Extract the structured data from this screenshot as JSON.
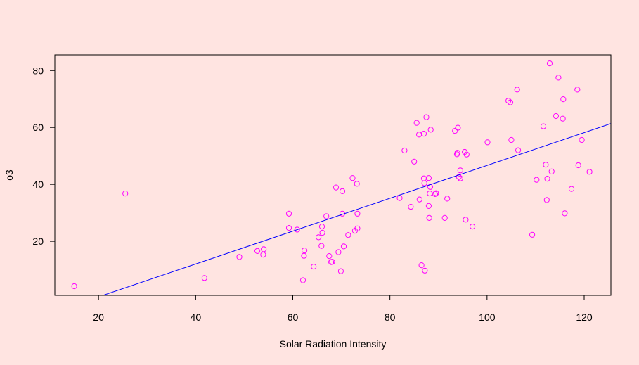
{
  "background_color": "#ffe4e1",
  "chart_data": {
    "type": "scatter",
    "title": "",
    "xlabel": "Solar Radiation Intensity",
    "ylabel": "o3",
    "xlim": [
      11,
      125.5
    ],
    "ylim": [
      1,
      85.5
    ],
    "x_ticks": [
      20,
      40,
      60,
      80,
      100,
      120
    ],
    "y_ticks": [
      20,
      40,
      60,
      80
    ],
    "grid": false,
    "legend": "none",
    "point_color": "#ff00ff",
    "line_color": "#0000ff",
    "series": [
      {
        "points": [
          [
            15.0,
            4.2
          ],
          [
            25.5,
            36.8
          ],
          [
            41.8,
            7.1
          ],
          [
            49.0,
            14.5
          ],
          [
            52.7,
            16.6
          ],
          [
            53.9,
            15.3
          ],
          [
            54.0,
            17.2
          ],
          [
            59.2,
            29.7
          ],
          [
            59.2,
            24.7
          ],
          [
            60.9,
            24.1
          ],
          [
            62.1,
            6.3
          ],
          [
            62.3,
            14.9
          ],
          [
            62.4,
            16.8
          ],
          [
            64.3,
            11.1
          ],
          [
            65.3,
            21.4
          ],
          [
            65.9,
            18.4
          ],
          [
            66.0,
            25.2
          ],
          [
            66.1,
            23.0
          ],
          [
            66.9,
            28.8
          ],
          [
            67.5,
            14.8
          ],
          [
            67.9,
            12.7
          ],
          [
            68.1,
            12.8
          ],
          [
            68.9,
            38.9
          ],
          [
            69.4,
            16.2
          ],
          [
            69.9,
            9.5
          ],
          [
            70.2,
            37.6
          ],
          [
            70.2,
            29.7
          ],
          [
            70.5,
            18.2
          ],
          [
            71.4,
            22.2
          ],
          [
            72.3,
            42.2
          ],
          [
            72.8,
            23.7
          ],
          [
            73.2,
            40.2
          ],
          [
            73.3,
            29.7
          ],
          [
            73.3,
            24.5
          ],
          [
            82.0,
            35.2
          ],
          [
            83.0,
            51.9
          ],
          [
            84.3,
            32.1
          ],
          [
            85.0,
            48.0
          ],
          [
            85.5,
            61.6
          ],
          [
            86.0,
            57.5
          ],
          [
            86.1,
            34.7
          ],
          [
            86.5,
            11.6
          ],
          [
            87.0,
            57.8
          ],
          [
            87.0,
            42.1
          ],
          [
            87.1,
            40.4
          ],
          [
            87.2,
            9.7
          ],
          [
            87.5,
            63.6
          ],
          [
            88.0,
            42.2
          ],
          [
            88.0,
            32.4
          ],
          [
            88.1,
            28.2
          ],
          [
            88.2,
            36.8
          ],
          [
            88.3,
            39.1
          ],
          [
            88.4,
            59.2
          ],
          [
            89.3,
            36.6
          ],
          [
            89.5,
            36.9
          ],
          [
            91.3,
            28.2
          ],
          [
            91.8,
            35.0
          ],
          [
            93.4,
            58.8
          ],
          [
            93.8,
            50.6
          ],
          [
            93.9,
            51.1
          ],
          [
            94.0,
            59.9
          ],
          [
            94.2,
            42.6
          ],
          [
            94.5,
            42.1
          ],
          [
            94.5,
            44.9
          ],
          [
            95.4,
            51.4
          ],
          [
            95.6,
            27.6
          ],
          [
            95.8,
            50.5
          ],
          [
            97.0,
            25.2
          ],
          [
            100.1,
            54.8
          ],
          [
            104.4,
            69.4
          ],
          [
            104.8,
            68.8
          ],
          [
            105.0,
            55.6
          ],
          [
            106.2,
            73.3
          ],
          [
            106.4,
            52.0
          ],
          [
            109.3,
            22.3
          ],
          [
            110.2,
            41.6
          ],
          [
            111.6,
            60.4
          ],
          [
            112.1,
            46.9
          ],
          [
            112.3,
            34.5
          ],
          [
            112.4,
            42.0
          ],
          [
            112.9,
            82.5
          ],
          [
            113.3,
            44.5
          ],
          [
            114.2,
            64.0
          ],
          [
            114.7,
            77.5
          ],
          [
            115.6,
            63.1
          ],
          [
            115.7,
            69.9
          ],
          [
            116.0,
            29.8
          ],
          [
            117.4,
            38.4
          ],
          [
            118.6,
            73.3
          ],
          [
            118.8,
            46.7
          ],
          [
            119.5,
            55.6
          ],
          [
            121.1,
            44.4
          ]
        ]
      }
    ],
    "regression_line": {
      "x": [
        11,
        125.5
      ],
      "y": [
        -4.71,
        61.37
      ]
    }
  }
}
